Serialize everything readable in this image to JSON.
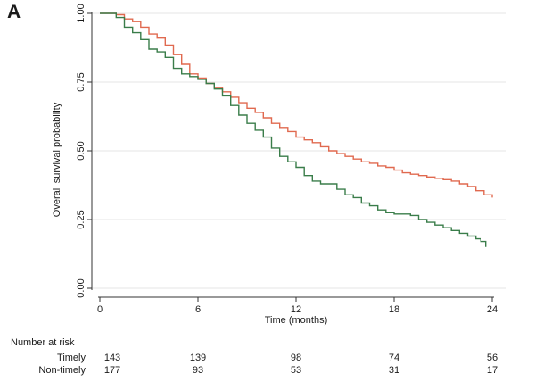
{
  "panel_label": "A",
  "chart_data": {
    "type": "line",
    "xlabel": "Time (months)",
    "ylabel": "Overall survival probability",
    "xlim": [
      0,
      24
    ],
    "ylim": [
      0,
      1
    ],
    "x_ticks": [
      0,
      6,
      12,
      18,
      24
    ],
    "y_ticks": [
      0.0,
      0.25,
      0.5,
      0.75,
      1.0
    ],
    "y_tick_labels": [
      "0.00",
      "0.25",
      "0.50",
      "0.75",
      "1.00"
    ],
    "grid": "horizontal",
    "series": [
      {
        "name": "Timely",
        "color": "#e0694f",
        "x": [
          0,
          0.5,
          1.0,
          1.5,
          2.0,
          2.5,
          3.0,
          3.5,
          4.0,
          4.5,
          5.0,
          5.5,
          6.0,
          6.5,
          7.0,
          7.5,
          8.0,
          8.5,
          9.0,
          9.5,
          10.0,
          10.5,
          11.0,
          11.5,
          12.0,
          12.5,
          13.0,
          13.5,
          14.0,
          14.5,
          15.0,
          15.5,
          16.0,
          16.5,
          17.0,
          17.5,
          18.0,
          18.5,
          19.0,
          19.5,
          20.0,
          20.5,
          21.0,
          21.5,
          22.0,
          22.5,
          23.0,
          23.5,
          24.0
        ],
        "y": [
          1.0,
          1.0,
          0.995,
          0.98,
          0.97,
          0.95,
          0.925,
          0.91,
          0.885,
          0.85,
          0.815,
          0.78,
          0.765,
          0.745,
          0.73,
          0.715,
          0.695,
          0.675,
          0.655,
          0.64,
          0.62,
          0.6,
          0.585,
          0.57,
          0.55,
          0.54,
          0.53,
          0.515,
          0.5,
          0.49,
          0.48,
          0.47,
          0.46,
          0.455,
          0.445,
          0.44,
          0.43,
          0.42,
          0.415,
          0.41,
          0.405,
          0.4,
          0.395,
          0.39,
          0.38,
          0.37,
          0.355,
          0.34,
          0.33
        ]
      },
      {
        "name": "Non-timely",
        "color": "#3a7d4a",
        "x": [
          0,
          0.5,
          1.0,
          1.5,
          2.0,
          2.5,
          3.0,
          3.5,
          4.0,
          4.5,
          5.0,
          5.5,
          6.0,
          6.5,
          7.0,
          7.5,
          8.0,
          8.5,
          9.0,
          9.5,
          10.0,
          10.5,
          11.0,
          11.5,
          12.0,
          12.5,
          13.0,
          13.5,
          14.0,
          14.5,
          15.0,
          15.5,
          16.0,
          16.5,
          17.0,
          17.5,
          18.0,
          18.5,
          19.0,
          19.5,
          20.0,
          20.5,
          21.0,
          21.5,
          22.0,
          22.5,
          23.0,
          23.3,
          23.6
        ],
        "y": [
          1.0,
          1.0,
          0.985,
          0.95,
          0.93,
          0.905,
          0.87,
          0.86,
          0.84,
          0.8,
          0.78,
          0.77,
          0.76,
          0.745,
          0.725,
          0.7,
          0.665,
          0.63,
          0.6,
          0.575,
          0.55,
          0.51,
          0.48,
          0.46,
          0.44,
          0.41,
          0.39,
          0.38,
          0.38,
          0.36,
          0.34,
          0.33,
          0.31,
          0.3,
          0.285,
          0.275,
          0.27,
          0.27,
          0.265,
          0.25,
          0.24,
          0.23,
          0.22,
          0.21,
          0.2,
          0.19,
          0.18,
          0.17,
          0.15
        ]
      }
    ]
  },
  "risk_table": {
    "title": "Number at risk",
    "timepoints": [
      0,
      6,
      12,
      18,
      24
    ],
    "rows": [
      {
        "label": "Timely",
        "values": [
          "143",
          "139",
          "98",
          "74",
          "56"
        ]
      },
      {
        "label": "Non-timely",
        "values": [
          "177",
          "93",
          "53",
          "31",
          "17"
        ]
      }
    ]
  }
}
